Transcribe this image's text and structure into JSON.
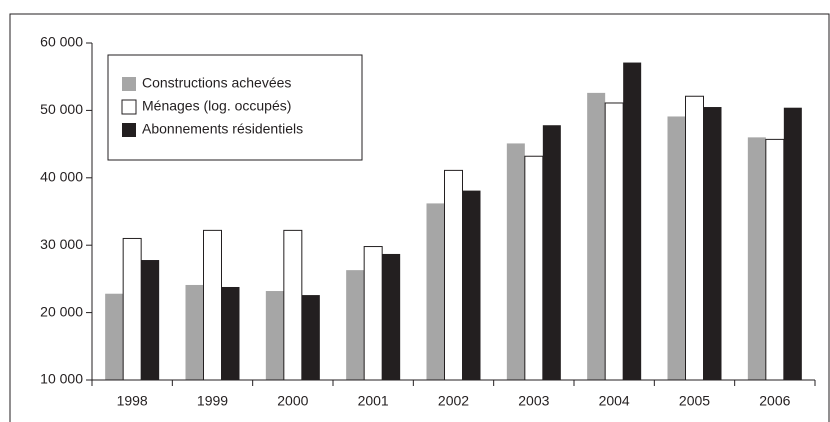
{
  "chart_data": {
    "type": "bar",
    "categories": [
      "1998",
      "1999",
      "2000",
      "2001",
      "2002",
      "2003",
      "2004",
      "2005",
      "2006"
    ],
    "series": [
      {
        "name": "Constructions achevées",
        "color": "#a6a6a6",
        "values": [
          22800,
          24100,
          23200,
          26300,
          36200,
          45100,
          52600,
          49100,
          46000
        ]
      },
      {
        "name": "Ménages (log. occupés)",
        "color": "#ffffff",
        "values": [
          31000,
          32200,
          32200,
          29800,
          41100,
          43200,
          51100,
          52100,
          45700
        ]
      },
      {
        "name": "Abonnements résidentiels",
        "color": "#231f20",
        "values": [
          27800,
          23800,
          22600,
          28700,
          38100,
          47800,
          57100,
          50500,
          50400
        ]
      }
    ],
    "ylim": [
      10000,
      60000
    ],
    "yticks": [
      {
        "value": 10000,
        "label": "10 000"
      },
      {
        "value": 20000,
        "label": "20 000"
      },
      {
        "value": 30000,
        "label": "30 000"
      },
      {
        "value": 40000,
        "label": "40 000"
      },
      {
        "value": 50000,
        "label": "50 000"
      },
      {
        "value": 60000,
        "label": "60 000"
      }
    ],
    "legend": "upper-left"
  }
}
